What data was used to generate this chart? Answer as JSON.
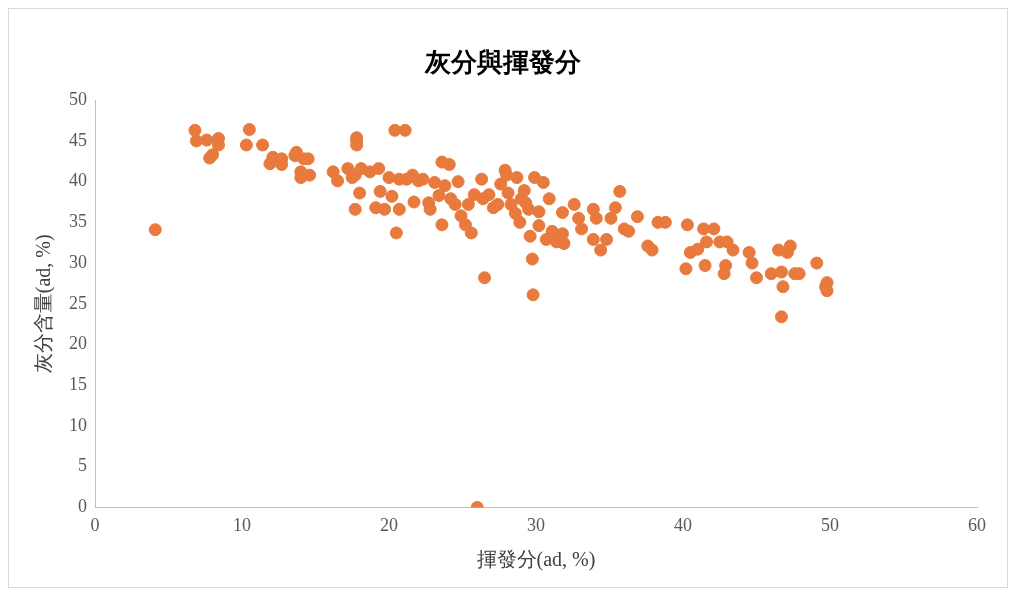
{
  "chart_data": {
    "type": "scatter",
    "title": "灰分與揮發分",
    "xlabel": "揮發分(ad, %)",
    "ylabel": "灰分含量(ad, %)",
    "xlim": [
      0,
      60
    ],
    "xticks": [
      0,
      10,
      20,
      30,
      40,
      50,
      60
    ],
    "ylim": [
      0,
      50
    ],
    "yticks": [
      0,
      5,
      10,
      15,
      20,
      25,
      30,
      35,
      40,
      45,
      50
    ],
    "grid": false,
    "legend": false,
    "marker": "circle",
    "series": [
      {
        "color": "#e87a3e",
        "x": [
          4.1,
          6.8,
          6.9,
          7.6,
          8.4,
          8.4,
          7.8,
          8.0,
          10.3,
          10.5,
          11.4,
          11.9,
          12.1,
          12.7,
          12.7,
          13.6,
          13.7,
          14.2,
          14.5,
          14.0,
          14.6,
          14.0,
          16.2,
          16.5,
          17.2,
          17.5,
          17.7,
          17.7,
          17.8,
          17.8,
          17.8,
          18.0,
          18.1,
          18.7,
          19.1,
          19.3,
          19.4,
          19.7,
          20.0,
          20.2,
          20.4,
          21.1,
          20.5,
          20.7,
          20.7,
          21.2,
          21.6,
          21.7,
          22.0,
          22.3,
          22.7,
          22.8,
          23.1,
          23.4,
          23.6,
          24.1,
          23.6,
          23.8,
          24.2,
          24.7,
          24.5,
          24.9,
          25.2,
          25.4,
          25.6,
          25.8,
          26.0,
          26.3,
          26.4,
          26.5,
          26.8,
          27.1,
          27.4,
          27.6,
          27.9,
          28.0,
          28.1,
          28.3,
          28.6,
          28.7,
          28.9,
          29.0,
          29.2,
          29.5,
          29.6,
          29.75,
          29.9,
          29.8,
          30.2,
          30.2,
          30.5,
          30.7,
          30.9,
          31.1,
          31.4,
          31.8,
          31.9,
          31.8,
          32.6,
          32.9,
          33.1,
          33.9,
          34.1,
          33.9,
          34.4,
          34.8,
          35.1,
          35.4,
          35.7,
          36.0,
          36.3,
          36.9,
          37.6,
          37.9,
          38.3,
          38.8,
          40.3,
          40.2,
          40.5,
          41.0,
          41.4,
          41.6,
          41.5,
          42.1,
          42.5,
          42.8,
          42.9,
          43.0,
          43.4,
          44.5,
          44.7,
          45.0,
          46.0,
          46.5,
          46.7,
          46.7,
          46.8,
          47.1,
          47.3,
          47.6,
          47.9,
          49.1,
          49.7,
          49.8,
          49.8,
          29.3
        ],
        "values": [
          34.1,
          46.3,
          45.0,
          45.1,
          45.3,
          44.5,
          42.9,
          43.3,
          44.5,
          46.4,
          44.5,
          42.2,
          43.0,
          42.8,
          42.1,
          43.2,
          43.6,
          42.8,
          42.8,
          41.2,
          40.8,
          40.5,
          41.2,
          40.1,
          41.6,
          40.5,
          40.8,
          36.6,
          45.1,
          44.5,
          45.4,
          38.6,
          41.6,
          41.2,
          36.8,
          41.6,
          38.8,
          36.6,
          40.5,
          38.2,
          46.3,
          46.3,
          33.7,
          36.6,
          40.3,
          40.3,
          40.8,
          37.5,
          40.1,
          40.3,
          37.4,
          36.6,
          39.9,
          38.3,
          42.4,
          42.1,
          34.7,
          39.5,
          37.9,
          40.0,
          37.2,
          35.8,
          34.7,
          37.2,
          33.7,
          38.4,
          0,
          40.3,
          37.9,
          28.2,
          38.4,
          36.8,
          37.2,
          39.7,
          41.4,
          40.8,
          38.6,
          37.2,
          36.1,
          40.5,
          35.0,
          37.9,
          38.9,
          36.6,
          33.3,
          30.5,
          40.5,
          26.1,
          36.3,
          34.6,
          39.9,
          32.9,
          37.9,
          33.9,
          32.6,
          33.6,
          32.4,
          36.2,
          37.2,
          35.5,
          34.2,
          36.6,
          35.5,
          32.9,
          31.6,
          32.9,
          35.5,
          36.8,
          38.8,
          34.2,
          33.9,
          35.7,
          32.1,
          31.6,
          35.0,
          35.0,
          34.7,
          29.3,
          31.3,
          31.7,
          34.2,
          32.6,
          29.7,
          34.2,
          32.6,
          28.7,
          29.7,
          32.6,
          31.6,
          31.3,
          30.0,
          28.2,
          28.7,
          31.6,
          28.9,
          23.4,
          27.1,
          31.3,
          32.1,
          28.7,
          28.7,
          30.0,
          27.1,
          27.6,
          26.6,
          37.4
        ]
      }
    ]
  }
}
